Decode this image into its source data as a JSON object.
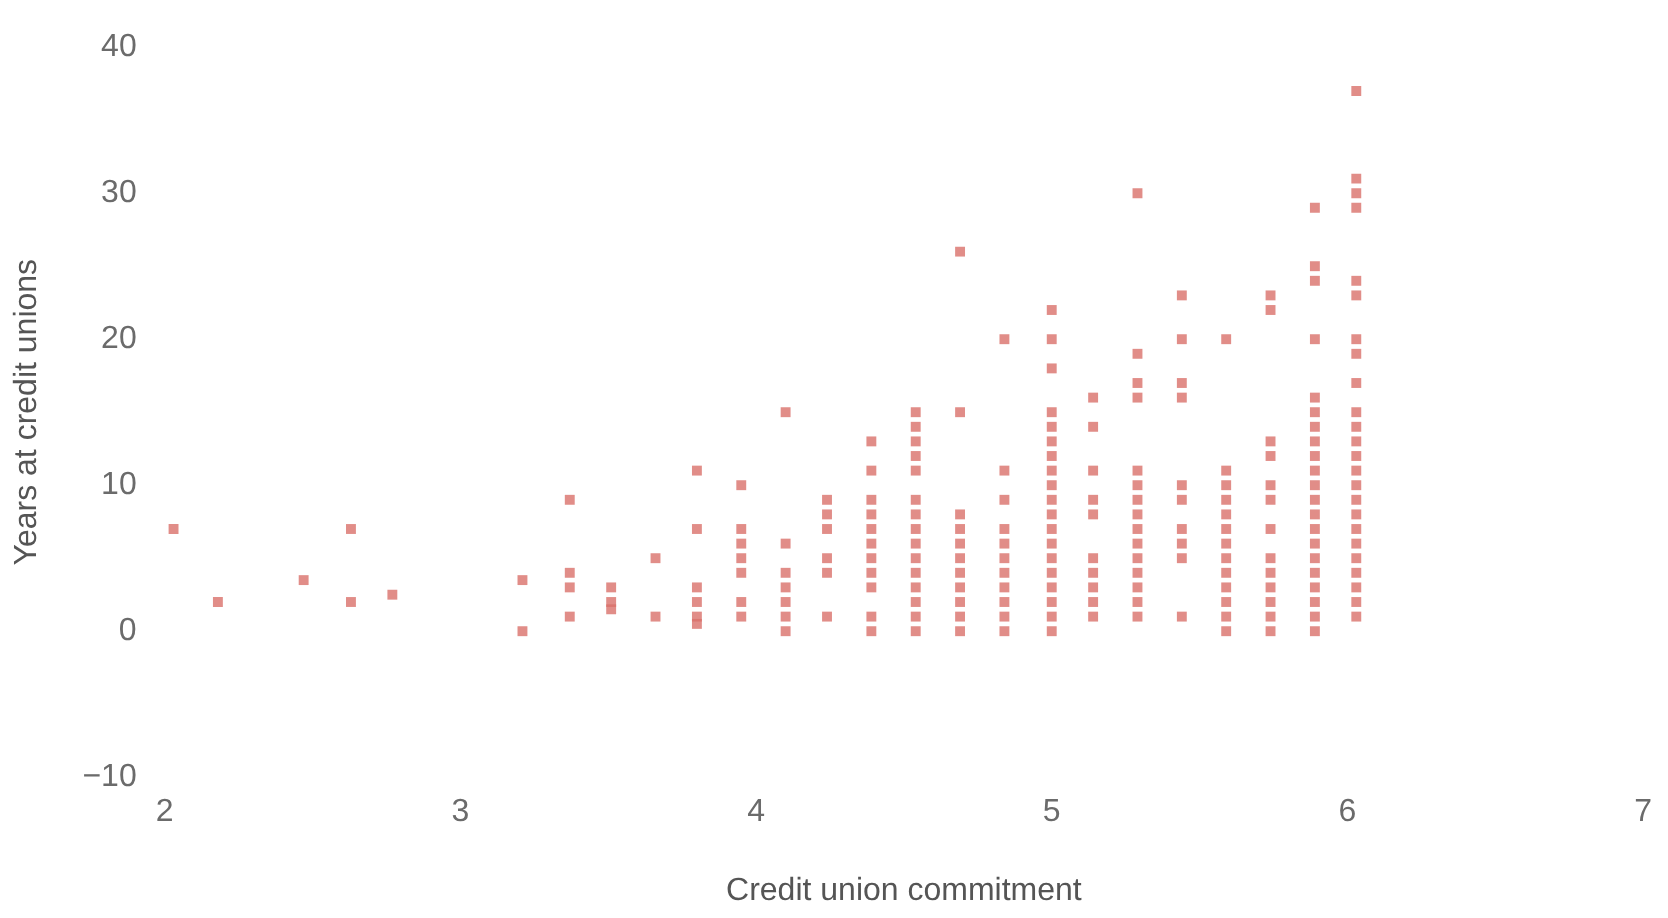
{
  "chart_data": {
    "type": "scatter",
    "xlabel": "Credit union commitment",
    "ylabel": "Years at credit unions",
    "xlim": [
      2,
      7
    ],
    "xticks": [
      2,
      3,
      4,
      5,
      6,
      7
    ],
    "ylim": [
      -10,
      40
    ],
    "yticks": [
      -10,
      0,
      10,
      20,
      30,
      40
    ],
    "grid": false,
    "legend": false,
    "marker": "square",
    "series": [
      {
        "color": "#d9706a",
        "x": [
          2.03,
          2.18,
          2.47,
          2.63,
          2.63,
          2.77,
          3.21,
          3.21,
          3.37,
          3.37,
          3.37,
          3.37,
          3.51,
          3.51,
          3.51,
          3.66,
          3.66,
          3.8,
          3.8,
          3.8,
          3.8,
          3.8,
          3.8,
          3.95,
          3.95,
          3.95,
          3.95,
          3.95,
          3.95,
          3.95,
          4.1,
          4.1,
          4.1,
          4.1,
          4.1,
          4.1,
          4.1,
          4.24,
          4.24,
          4.24,
          4.24,
          4.24,
          4.24,
          4.39,
          4.39,
          4.39,
          4.39,
          4.39,
          4.39,
          4.39,
          4.39,
          4.39,
          4.39,
          4.39,
          4.54,
          4.54,
          4.54,
          4.54,
          4.54,
          4.54,
          4.54,
          4.54,
          4.54,
          4.54,
          4.54,
          4.54,
          4.54,
          4.54,
          4.54,
          4.69,
          4.69,
          4.69,
          4.69,
          4.69,
          4.69,
          4.69,
          4.69,
          4.69,
          4.69,
          4.69,
          4.84,
          4.84,
          4.84,
          4.84,
          4.84,
          4.84,
          4.84,
          4.84,
          4.84,
          4.84,
          4.84,
          5.0,
          5.0,
          5.0,
          5.0,
          5.0,
          5.0,
          5.0,
          5.0,
          5.0,
          5.0,
          5.0,
          5.0,
          5.0,
          5.0,
          5.0,
          5.0,
          5.0,
          5.0,
          5.0,
          5.14,
          5.14,
          5.14,
          5.14,
          5.14,
          5.14,
          5.14,
          5.14,
          5.14,
          5.14,
          5.29,
          5.29,
          5.29,
          5.29,
          5.29,
          5.29,
          5.29,
          5.29,
          5.29,
          5.29,
          5.29,
          5.29,
          5.29,
          5.29,
          5.29,
          5.44,
          5.44,
          5.44,
          5.44,
          5.44,
          5.44,
          5.44,
          5.44,
          5.44,
          5.44,
          5.59,
          5.59,
          5.59,
          5.59,
          5.59,
          5.59,
          5.59,
          5.59,
          5.59,
          5.59,
          5.59,
          5.59,
          5.59,
          5.74,
          5.74,
          5.74,
          5.74,
          5.74,
          5.74,
          5.74,
          5.74,
          5.74,
          5.74,
          5.74,
          5.74,
          5.74,
          5.89,
          5.89,
          5.89,
          5.89,
          5.89,
          5.89,
          5.89,
          5.89,
          5.89,
          5.89,
          5.89,
          5.89,
          5.89,
          5.89,
          5.89,
          5.89,
          5.89,
          5.89,
          5.89,
          5.89,
          5.89,
          6.03,
          6.03,
          6.03,
          6.03,
          6.03,
          6.03,
          6.03,
          6.03,
          6.03,
          6.03,
          6.03,
          6.03,
          6.03,
          6.03,
          6.03,
          6.03,
          6.03,
          6.03,
          6.03,
          6.03,
          6.03,
          6.03,
          6.03,
          6.03
        ],
        "values": [
          7,
          2,
          3.5,
          7,
          2,
          2.5,
          3.5,
          0,
          9,
          4,
          3,
          1,
          3,
          2,
          1.5,
          5,
          1,
          11,
          7,
          3,
          2,
          1,
          0.5,
          10,
          7,
          6,
          5,
          4,
          2,
          1,
          15,
          6,
          4,
          3,
          2,
          1,
          0,
          9,
          8,
          7,
          5,
          4,
          1,
          13,
          11,
          9,
          8,
          7,
          6,
          5,
          4,
          3,
          1,
          0,
          15,
          14,
          13,
          12,
          11,
          9,
          8,
          7,
          6,
          5,
          4,
          3,
          2,
          1,
          0,
          26,
          15,
          8,
          7,
          6,
          5,
          4,
          3,
          2,
          1,
          0,
          20,
          11,
          9,
          7,
          6,
          5,
          4,
          3,
          2,
          1,
          0,
          22,
          20,
          18,
          15,
          14,
          13,
          12,
          11,
          10,
          9,
          8,
          7,
          6,
          5,
          4,
          3,
          2,
          1,
          0,
          16,
          14,
          11,
          9,
          8,
          5,
          4,
          3,
          2,
          1,
          30,
          19,
          17,
          16,
          11,
          10,
          9,
          8,
          7,
          6,
          5,
          4,
          3,
          2,
          1,
          23,
          20,
          17,
          16,
          10,
          9,
          7,
          6,
          5,
          1,
          20,
          11,
          10,
          9,
          8,
          7,
          6,
          5,
          4,
          3,
          2,
          1,
          0,
          23,
          22,
          13,
          12,
          10,
          9,
          7,
          5,
          4,
          3,
          2,
          1,
          0,
          29,
          25,
          24,
          20,
          16,
          15,
          14,
          13,
          12,
          11,
          10,
          9,
          8,
          7,
          6,
          5,
          4,
          3,
          2,
          1,
          0,
          37,
          31,
          30,
          29,
          24,
          23,
          20,
          19,
          17,
          15,
          14,
          13,
          12,
          11,
          10,
          9,
          8,
          7,
          6,
          5,
          4,
          3,
          2,
          1
        ]
      }
    ]
  }
}
